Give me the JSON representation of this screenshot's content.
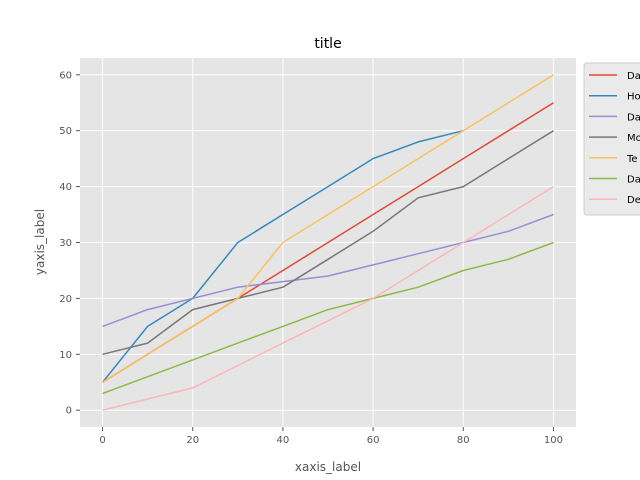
{
  "chart_data": {
    "type": "line",
    "title": "title",
    "xlabel": "xaxis_label",
    "ylabel": "yaxis_label",
    "xlim": [
      -5,
      105
    ],
    "ylim": [
      -3,
      63
    ],
    "xticks": [
      0,
      20,
      40,
      60,
      80,
      100
    ],
    "yticks": [
      0,
      10,
      20,
      30,
      40,
      50,
      60
    ],
    "grid": true,
    "legend_position": "outside-right-top",
    "x": [
      0,
      10,
      20,
      30,
      40,
      50,
      60,
      70,
      80,
      90,
      100
    ],
    "series": [
      {
        "name": "Da",
        "color": "#E24A33",
        "values": [
          5,
          10,
          15,
          20,
          25,
          30,
          35,
          40,
          45,
          50,
          55
        ]
      },
      {
        "name": "Ho",
        "color": "#348ABD",
        "values": [
          5,
          15,
          20,
          30,
          35,
          40,
          45,
          48,
          50,
          null,
          null
        ]
      },
      {
        "name": "Da",
        "color": "#988ED5",
        "values": [
          15,
          18,
          20,
          22,
          23,
          24,
          26,
          28,
          30,
          32,
          35
        ]
      },
      {
        "name": "Mo",
        "color": "#777777",
        "values": [
          10,
          12,
          18,
          20,
          22,
          27,
          32,
          38,
          40,
          45,
          50
        ]
      },
      {
        "name": "Te",
        "color": "#FBC15E",
        "values": [
          5,
          10,
          15,
          20,
          30,
          35,
          40,
          45,
          50,
          55,
          60
        ]
      },
      {
        "name": "Da",
        "color": "#8EBA42",
        "values": [
          3,
          6,
          9,
          12,
          15,
          18,
          20,
          22,
          25,
          27,
          30
        ]
      },
      {
        "name": "De",
        "color": "#FFB5B8",
        "values": [
          0,
          2,
          4,
          8,
          12,
          16,
          20,
          25,
          30,
          35,
          40
        ]
      }
    ]
  }
}
